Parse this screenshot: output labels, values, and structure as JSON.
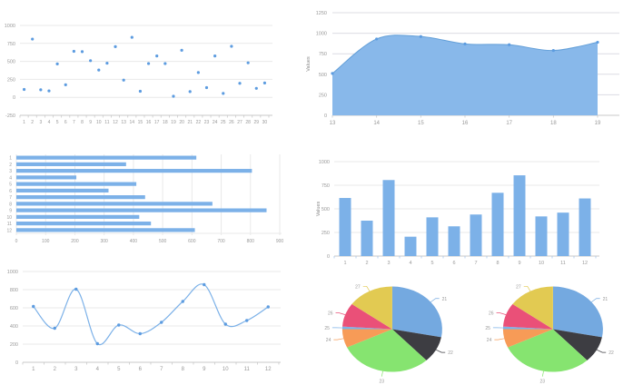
{
  "page": {
    "background": "#ffffff"
  },
  "palette": {
    "series": "#7cb1e8",
    "series_stroke": "#639fd8",
    "point": "#5d9ce0",
    "area_fill": "#88b8ea",
    "grid": "#e9e9e9",
    "grid_area": "#dcdce3",
    "axis_line": "#c9c9c9",
    "minor_tick": "#a9c7ea",
    "tick_text": "#999999",
    "axis_title_text": "#8a8a8a"
  },
  "chart_data": [
    {
      "type": "scatter",
      "name": "scatter-chart",
      "x": [
        1,
        2,
        3,
        4,
        5,
        6,
        7,
        8,
        9,
        10,
        11,
        12,
        13,
        14,
        15,
        16,
        17,
        18,
        19,
        20,
        21,
        22,
        23,
        24,
        25,
        26,
        27,
        28,
        29,
        30
      ],
      "values": [
        110,
        810,
        105,
        90,
        465,
        175,
        640,
        635,
        510,
        380,
        475,
        705,
        240,
        835,
        85,
        470,
        575,
        470,
        15,
        655,
        80,
        345,
        135,
        575,
        55,
        710,
        195,
        480,
        125,
        200
      ],
      "y_ticks": [
        -250,
        0,
        250,
        500,
        750,
        1000
      ],
      "ylim": [
        -250,
        1000
      ],
      "grid": true
    },
    {
      "type": "area",
      "name": "area-chart",
      "x": [
        13,
        14,
        15,
        16,
        17,
        18,
        19
      ],
      "values": [
        510,
        930,
        960,
        870,
        860,
        790,
        890
      ],
      "y_ticks": [
        0,
        250,
        500,
        750,
        1000,
        1250
      ],
      "ylim": [
        0,
        1250
      ],
      "ylabel": "Values",
      "grid": true
    },
    {
      "type": "hbar",
      "name": "horizontal-bar-chart",
      "categories": [
        1,
        2,
        3,
        4,
        5,
        6,
        7,
        8,
        9,
        10,
        11,
        12
      ],
      "values": [
        615,
        375,
        805,
        205,
        410,
        315,
        440,
        670,
        855,
        420,
        460,
        610
      ],
      "x_ticks": [
        0,
        100,
        200,
        300,
        400,
        500,
        600,
        700,
        800,
        900
      ],
      "xlim": [
        0,
        900
      ],
      "grid": true
    },
    {
      "type": "bar",
      "name": "vertical-bar-chart",
      "categories": [
        1,
        2,
        3,
        4,
        5,
        6,
        7,
        8,
        9,
        10,
        11,
        12
      ],
      "values": [
        615,
        375,
        805,
        205,
        410,
        315,
        440,
        670,
        855,
        420,
        460,
        610
      ],
      "y_ticks": [
        0,
        250,
        500,
        750,
        1000
      ],
      "ylim": [
        0,
        1000
      ],
      "ylabel": "Values",
      "grid": true
    },
    {
      "type": "line",
      "name": "line-chart",
      "x": [
        1,
        2,
        3,
        4,
        5,
        6,
        7,
        8,
        9,
        10,
        11,
        12
      ],
      "values": [
        615,
        375,
        805,
        205,
        410,
        315,
        440,
        670,
        855,
        420,
        460,
        610
      ],
      "y_ticks": [
        0,
        200,
        400,
        600,
        800,
        1000
      ],
      "ylim": [
        0,
        1000
      ],
      "grid": true
    },
    {
      "type": "pie",
      "name": "pie-chart-left",
      "labels": [
        "21",
        "22",
        "23",
        "24",
        "25",
        "26",
        "27"
      ],
      "values": [
        28,
        10,
        30,
        7,
        1,
        9,
        15
      ],
      "colors": [
        "#74a9e0",
        "#3d3d42",
        "#86e470",
        "#f79b57",
        "#7cb1e8",
        "#ea5078",
        "#e2ca52"
      ],
      "legend": "off"
    },
    {
      "type": "pie",
      "name": "pie-chart-right",
      "labels": [
        "21",
        "22",
        "23",
        "24",
        "25",
        "26",
        "27"
      ],
      "values": [
        28,
        10,
        30,
        7,
        1,
        9,
        15
      ],
      "colors": [
        "#74a9e0",
        "#3d3d42",
        "#86e470",
        "#f79b57",
        "#7cb1e8",
        "#ea5078",
        "#e2ca52"
      ],
      "legend": "off"
    }
  ]
}
